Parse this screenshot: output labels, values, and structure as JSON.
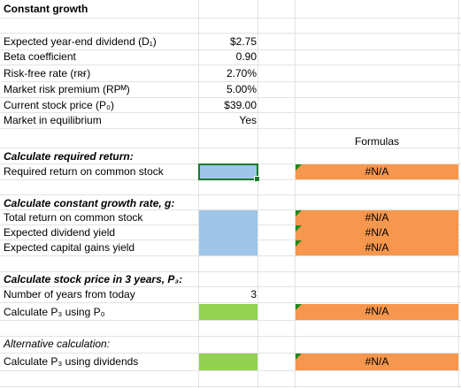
{
  "title": "Constant growth",
  "inputs": [
    {
      "label": "Expected year-end dividend (D₁)",
      "value": "$2.75"
    },
    {
      "label": "Beta coefficient",
      "value": "0.90"
    },
    {
      "label": "Risk-free rate (rʀғ)",
      "value": "2.70%"
    },
    {
      "label": "Market risk premium (RPᴹ)",
      "value": "5.00%"
    },
    {
      "label": "Current stock price (P₀)",
      "value": "$39.00"
    },
    {
      "label": "Market in equilibrium",
      "value": "Yes"
    }
  ],
  "formulas_header": "Formulas",
  "section1": {
    "heading": "Calculate required return:",
    "rows": [
      {
        "label": "Required return on common stock",
        "formula": "#N/A"
      }
    ]
  },
  "section2": {
    "heading": "Calculate constant growth rate, g:",
    "rows": [
      {
        "label": "Total return on common stock",
        "formula": "#N/A"
      },
      {
        "label": "Expected dividend yield",
        "formula": "#N/A"
      },
      {
        "label": "Expected capital gains yield",
        "formula": "#N/A"
      }
    ]
  },
  "section3": {
    "heading": "Calculate stock price in 3 years, P₃:",
    "rows": [
      {
        "label": "Number of years from today",
        "value": "3"
      },
      {
        "label": "Calculate P₃ using P₀",
        "formula": "#N/A"
      }
    ]
  },
  "section4": {
    "heading": "Alternative calculation:",
    "rows": [
      {
        "label": "Calculate P₃ using dividends",
        "formula": "#N/A"
      }
    ]
  },
  "colors": {
    "input_blue": "#9fc5e8",
    "input_green": "#93d150",
    "formula_orange": "#f6974d",
    "selection": "#1a7a2a"
  }
}
